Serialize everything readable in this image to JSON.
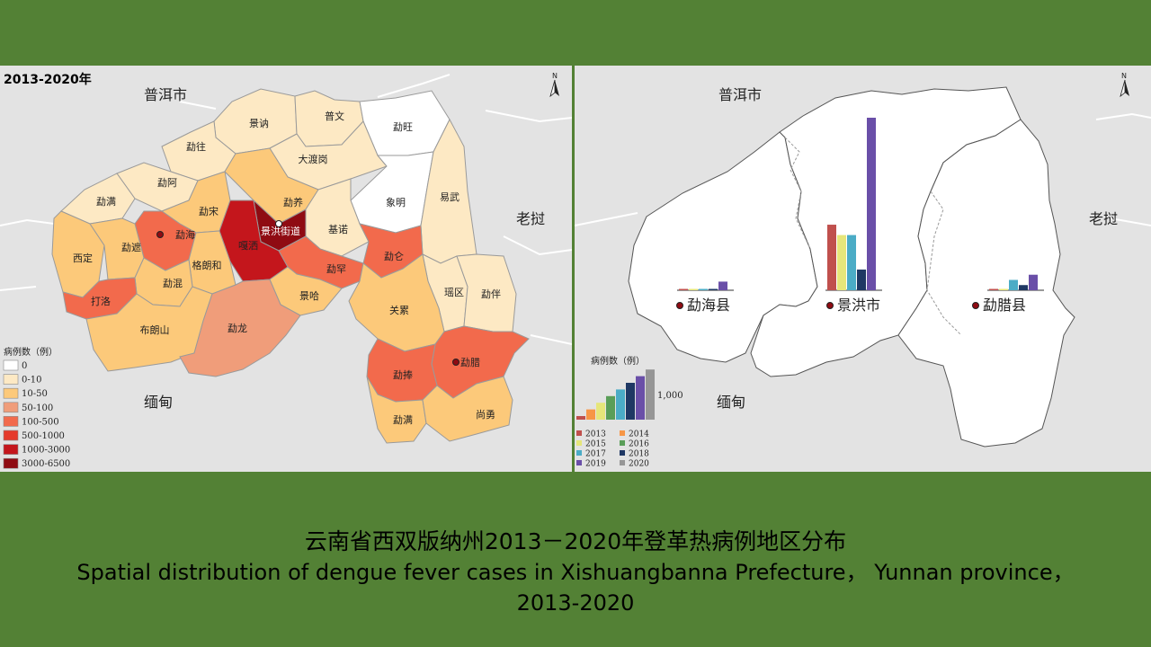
{
  "left_panel": {
    "period": "2013-2020年",
    "north_arrow": "N",
    "regions": {
      "north": "普洱市",
      "east": "老挝",
      "south": "缅甸"
    },
    "legend_title": "病例数（例）",
    "legend": [
      {
        "label": "0",
        "color": "#ffffff"
      },
      {
        "label": "0-10",
        "color": "#fde9c4"
      },
      {
        "label": "10-50",
        "color": "#fcc97a"
      },
      {
        "label": "50-100",
        "color": "#f09d7a"
      },
      {
        "label": "100-500",
        "color": "#f26a4c"
      },
      {
        "label": "500-1000",
        "color": "#e53a2b"
      },
      {
        "label": "1000-3000",
        "color": "#c4161c"
      },
      {
        "label": "3000-6500",
        "color": "#8f0b12"
      }
    ],
    "townships": [
      {
        "name": "景讷",
        "color": "#fde9c4"
      },
      {
        "name": "普文",
        "color": "#fde9c4"
      },
      {
        "name": "勐旺",
        "color": "#ffffff"
      },
      {
        "name": "勐往",
        "color": "#fde9c4"
      },
      {
        "name": "大渡岗",
        "color": "#fde9c4"
      },
      {
        "name": "勐阿",
        "color": "#fde9c4"
      },
      {
        "name": "象明",
        "color": "#ffffff"
      },
      {
        "name": "易武",
        "color": "#fde9c4"
      },
      {
        "name": "勐满",
        "color": "#fde9c4"
      },
      {
        "name": "勐宋",
        "color": "#fcc97a"
      },
      {
        "name": "勐养",
        "color": "#fcc97a"
      },
      {
        "name": "勐海",
        "color": "#f26a4c"
      },
      {
        "name": "景洪街道",
        "color": "#8f0b12"
      },
      {
        "name": "基诺",
        "color": "#fde9c4"
      },
      {
        "name": "西定",
        "color": "#fcc97a"
      },
      {
        "name": "勐遮",
        "color": "#fcc97a"
      },
      {
        "name": "嘎洒",
        "color": "#c4161c"
      },
      {
        "name": "格朗和",
        "color": "#fcc97a"
      },
      {
        "name": "勐罕",
        "color": "#f26a4c"
      },
      {
        "name": "勐仑",
        "color": "#f26a4c"
      },
      {
        "name": "勐混",
        "color": "#fcc97a"
      },
      {
        "name": "景哈",
        "color": "#fcc97a"
      },
      {
        "name": "瑶区",
        "color": "#fde9c4"
      },
      {
        "name": "勐伴",
        "color": "#fde9c4"
      },
      {
        "name": "打洛",
        "color": "#f26a4c"
      },
      {
        "name": "关累",
        "color": "#fcc97a"
      },
      {
        "name": "布朗山",
        "color": "#fcc97a"
      },
      {
        "name": "勐龙",
        "color": "#f09d7a"
      },
      {
        "name": "勐腊",
        "color": "#f26a4c"
      },
      {
        "name": "勐捧",
        "color": "#f26a4c"
      },
      {
        "name": "勐满",
        "color": "#fcc97a"
      },
      {
        "name": "尚勇",
        "color": "#fcc97a"
      }
    ],
    "county_seats": [
      "勐海",
      "景洪街道",
      "勐腊"
    ]
  },
  "right_panel": {
    "north_arrow": "N",
    "regions": {
      "north": "普洱市",
      "east": "老挝",
      "south": "缅甸"
    },
    "legend_title": "病例数（例）",
    "scale_label": "1,000",
    "year_colors": {
      "2013": "#c0504d",
      "2014": "#f79646",
      "2015": "#e6e67a",
      "2016": "#5a9e58",
      "2017": "#4bacc6",
      "2018": "#1f3864",
      "2019": "#6a4fa8",
      "2020": "#969696"
    }
  },
  "chart_data": {
    "type": "bar",
    "title": "",
    "categories": [
      "勐海县",
      "景洪市",
      "勐腊县"
    ],
    "ylabel": "病例数（例）",
    "series": [
      {
        "name": "2013",
        "values": [
          5,
          1900,
          10
        ]
      },
      {
        "name": "2014",
        "values": [
          0,
          0,
          0
        ]
      },
      {
        "name": "2015",
        "values": [
          30,
          1600,
          20
        ]
      },
      {
        "name": "2016",
        "values": [
          0,
          0,
          0
        ]
      },
      {
        "name": "2017",
        "values": [
          30,
          1600,
          300
        ]
      },
      {
        "name": "2018",
        "values": [
          25,
          600,
          150
        ]
      },
      {
        "name": "2019",
        "values": [
          250,
          5000,
          450
        ]
      },
      {
        "name": "2020",
        "values": [
          0,
          0,
          0
        ]
      }
    ]
  },
  "caption": {
    "cn": "云南省西双版纳州2013－2020年登革热病例地区分布",
    "en_line1": "Spatial distribution of dengue fever cases in Xishuangbanna Prefecture， Yunnan province，",
    "en_line2": "2013-2020"
  }
}
